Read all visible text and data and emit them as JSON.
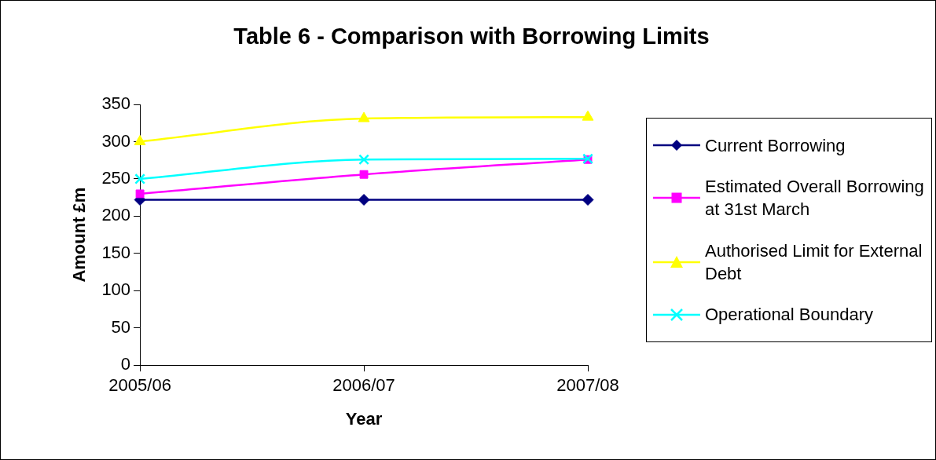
{
  "chart_data": {
    "type": "line",
    "title": "Table 6 - Comparison with Borrowing Limits",
    "xlabel": "Year",
    "ylabel": "Amount £m",
    "categories": [
      "2005/06",
      "2006/07",
      "2007/08"
    ],
    "series": [
      {
        "name": "Current Borrowing",
        "color": "#000080",
        "marker": "diamond",
        "values": [
          222,
          222,
          222
        ]
      },
      {
        "name": "Estimated Overall Borrowing at 31st March",
        "color": "#ff00ff",
        "marker": "square",
        "values": [
          230,
          256,
          276
        ]
      },
      {
        "name": "Authorised Limit for External Debt",
        "color": "#ffff00",
        "marker": "triangle",
        "values": [
          300,
          331,
          333
        ]
      },
      {
        "name": "Operational Boundary",
        "color": "#00ffff",
        "marker": "cross",
        "values": [
          250,
          276,
          277
        ]
      }
    ],
    "ylim": [
      0,
      350
    ],
    "yticks": [
      0,
      50,
      100,
      150,
      200,
      250,
      300,
      350
    ],
    "grid": false,
    "legend": "right"
  }
}
